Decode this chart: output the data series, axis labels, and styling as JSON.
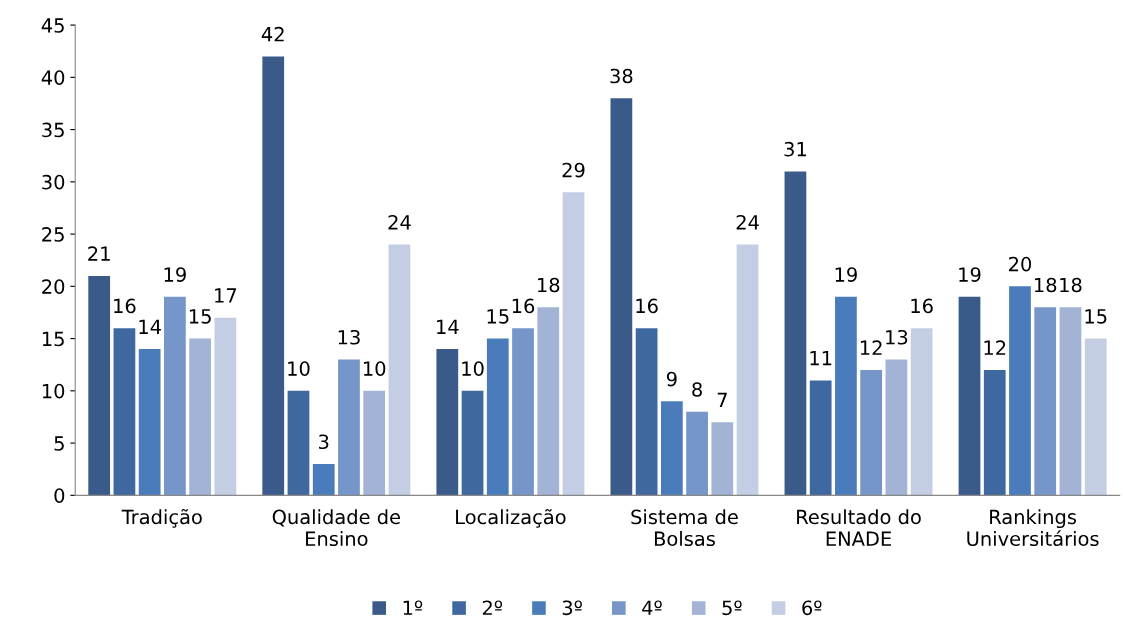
{
  "chart_data": {
    "type": "bar",
    "categories": [
      "Tradição",
      "Qualidade de\nEnsino",
      "Localização",
      "Sistema de\nBolsas",
      "Resultado do\nENADE",
      "Rankings\nUniversitários"
    ],
    "series": [
      {
        "name": "1º",
        "color": "#3a5a8a",
        "values": [
          21,
          42,
          14,
          38,
          31,
          19
        ]
      },
      {
        "name": "2º",
        "color": "#3f68a0",
        "values": [
          16,
          10,
          10,
          16,
          11,
          12
        ]
      },
      {
        "name": "3º",
        "color": "#4a7cbb",
        "values": [
          14,
          3,
          15,
          9,
          19,
          20
        ]
      },
      {
        "name": "4º",
        "color": "#7695c8",
        "values": [
          19,
          13,
          16,
          8,
          12,
          18
        ]
      },
      {
        "name": "5º",
        "color": "#a2b3d6",
        "values": [
          15,
          10,
          18,
          7,
          13,
          18
        ]
      },
      {
        "name": "6º",
        "color": "#c3cde3",
        "values": [
          17,
          24,
          29,
          24,
          16,
          15
        ]
      }
    ],
    "ylim": [
      0,
      45
    ],
    "yticks": [
      0,
      5,
      10,
      15,
      20,
      25,
      30,
      35,
      40,
      45
    ],
    "grid": false,
    "legend": "bottom",
    "data_labels": true
  }
}
